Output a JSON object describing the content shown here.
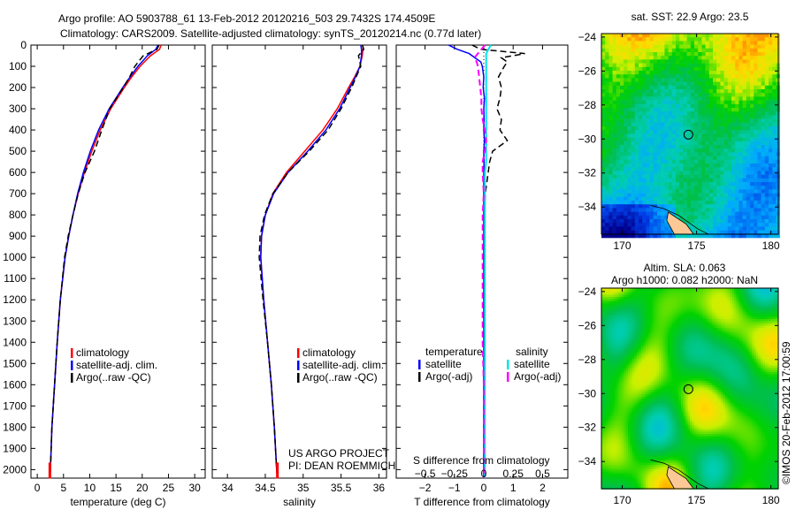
{
  "title_line1": "Argo profile: AO 5903788_61 13-Feb-2012 20120216_503 29.7432S 174.4509E",
  "title_line2": "Climatology: CARS2009. Satellite-adjusted climatology: synTS_20120214.nc (0.77d later)",
  "credit": "US ARGO PROJECT",
  "pi": "PI: DEAN ROEMMICH",
  "footer": "©IMOS 20-Feb-2012 17:00:59",
  "colors": {
    "climatology": "#ff0000",
    "satellite": "#0000ff",
    "argo": "#000000",
    "sal_satellite": "#00e5ee",
    "sal_argo": "#ff00ff"
  },
  "chart_data": [
    {
      "type": "line",
      "id": "temperature",
      "xlabel": "temperature (deg C)",
      "xlim": [
        -1.2,
        32
      ],
      "xticks": [
        0,
        5,
        10,
        15,
        20,
        25,
        30
      ],
      "ylim": [
        0,
        2040
      ],
      "yticks": [
        0,
        100,
        200,
        300,
        400,
        500,
        600,
        700,
        800,
        900,
        1000,
        1100,
        1200,
        1300,
        1400,
        1500,
        1600,
        1700,
        1800,
        1900,
        2000
      ],
      "legend": [
        "climatology",
        "satellite-adj. clim.",
        "Argo(..raw -QC)"
      ],
      "depth": [
        0,
        20,
        50,
        100,
        150,
        200,
        300,
        400,
        500,
        600,
        700,
        800,
        900,
        1000,
        1200,
        1400,
        1600,
        1800,
        2000,
        2040
      ],
      "series": [
        {
          "name": "climatology",
          "values": [
            23.6,
            23.3,
            21.6,
            19.6,
            18.0,
            16.6,
            14.0,
            12.0,
            10.4,
            9.0,
            7.8,
            6.8,
            6.0,
            5.3,
            4.4,
            3.8,
            3.3,
            2.8,
            2.5,
            2.4
          ]
        },
        {
          "name": "satellite-adj. clim.",
          "values": [
            23.0,
            22.6,
            21.0,
            19.2,
            17.7,
            16.3,
            13.7,
            11.7,
            10.1,
            8.8,
            7.7,
            6.8,
            6.0,
            5.3,
            4.4,
            3.8,
            3.3,
            2.8,
            2.5,
            2.4
          ]
        },
        {
          "name": "Argo(..raw -QC)",
          "values": [
            23.2,
            22.8,
            20.2,
            18.6,
            17.6,
            16.4,
            13.8,
            12.3,
            10.9,
            9.1,
            7.8,
            6.8,
            5.9,
            5.2,
            4.4,
            3.8,
            3.3,
            2.8,
            2.5,
            2.4
          ]
        }
      ]
    },
    {
      "type": "line",
      "id": "salinity",
      "xlabel": "salinity",
      "xlim": [
        33.8,
        36.1
      ],
      "xticks": [
        34,
        34.5,
        35,
        35.5,
        36
      ],
      "ylim": [
        0,
        2040
      ],
      "legend": [
        "climatology",
        "satellite-adj. clim.",
        "Argo(..raw -QC)"
      ],
      "depth": [
        0,
        20,
        50,
        100,
        150,
        200,
        300,
        400,
        500,
        600,
        700,
        800,
        900,
        1000,
        1200,
        1400,
        1600,
        1800,
        2000,
        2040
      ],
      "series": [
        {
          "name": "climatology",
          "values": [
            35.79,
            35.79,
            35.78,
            35.75,
            35.68,
            35.6,
            35.45,
            35.26,
            35.02,
            34.78,
            34.6,
            34.5,
            34.45,
            34.44,
            34.48,
            34.53,
            34.58,
            34.62,
            34.65,
            34.66
          ]
        },
        {
          "name": "satellite-adj. clim.",
          "values": [
            35.76,
            35.77,
            35.77,
            35.75,
            35.69,
            35.62,
            35.48,
            35.3,
            35.06,
            34.8,
            34.61,
            34.5,
            34.45,
            34.44,
            34.48,
            34.53,
            34.58,
            34.62,
            34.65,
            34.66
          ]
        },
        {
          "name": "Argo(..raw -QC)",
          "values": [
            35.78,
            35.8,
            35.73,
            35.76,
            35.7,
            35.64,
            35.5,
            35.33,
            35.08,
            34.8,
            34.6,
            34.49,
            34.43,
            34.42,
            34.47,
            34.53,
            34.58,
            34.62,
            34.65,
            34.66
          ]
        }
      ]
    },
    {
      "type": "line",
      "id": "difference",
      "xlabel": "T difference from climatology",
      "xlabel_top": "S difference from climatology",
      "xlim": [
        -2.98,
        2.86
      ],
      "xticks": [
        -2,
        -1,
        0,
        1,
        2
      ],
      "xticks_s": [
        "-0.5",
        "-0.25",
        "0",
        "0.25",
        "0.5"
      ],
      "xticks_s_values": [
        -0.5,
        -0.25,
        0,
        0.25,
        0.5
      ],
      "ylim": [
        0,
        2040
      ],
      "legend_temperature": {
        "title": "temperature",
        "items": [
          "satellite",
          "Argo(-adj)"
        ]
      },
      "legend_salinity": {
        "title": "salinity",
        "items": [
          "satellite",
          "Argo(-adj)"
        ]
      },
      "depth": [
        0,
        20,
        40,
        60,
        80,
        100,
        150,
        200,
        250,
        300,
        350,
        400,
        450,
        500,
        550,
        600,
        700,
        800,
        900,
        1000,
        1200,
        1400,
        1600,
        1800,
        2000,
        2040
      ],
      "series": [
        {
          "name": "T satellite",
          "axis": "T",
          "values": [
            -1.2,
            -0.9,
            -0.5,
            -0.3,
            -0.1,
            -0.05,
            0,
            -0.02,
            0.02,
            0,
            0.01,
            0,
            0.02,
            0,
            0.01,
            0,
            0,
            0,
            0,
            0,
            0,
            0,
            0,
            0,
            0,
            0
          ]
        },
        {
          "name": "T Argo(-adj)",
          "axis": "T",
          "values": [
            -0.4,
            -0.1,
            1.4,
            0.6,
            0.8,
            0.7,
            0.5,
            0.6,
            0.55,
            0.45,
            0.6,
            0.55,
            0.8,
            0.3,
            0.2,
            0.15,
            0.05,
            0.02,
            0.02,
            0,
            0,
            0,
            0,
            0,
            0,
            0
          ]
        },
        {
          "name": "S satellite",
          "axis": "S",
          "values": [
            0.06,
            0.04,
            0.02,
            0.02,
            0.02,
            0.02,
            0.02,
            0.02,
            0.02,
            0.02,
            0.02,
            0.02,
            0.02,
            0.02,
            0.02,
            0.01,
            0.01,
            0.01,
            0.01,
            0.01,
            0.01,
            0.01,
            0.01,
            0.01,
            0.01,
            0.01
          ]
        },
        {
          "name": "S Argo(-adj)",
          "axis": "S",
          "values": [
            0.01,
            -0.02,
            -0.05,
            -0.08,
            -0.06,
            -0.05,
            -0.04,
            -0.03,
            -0.02,
            -0.02,
            -0.01,
            0.01,
            0.02,
            0.01,
            -0.01,
            -0.01,
            0,
            -0.01,
            -0.01,
            -0.01,
            -0.01,
            -0.01,
            0,
            0,
            0,
            0
          ]
        }
      ]
    },
    {
      "type": "heatmap",
      "id": "sst_map",
      "title": "sat. SST: 22.9 Argo: 23.5",
      "xlim": [
        168.6,
        180.5
      ],
      "ylim": [
        -35.6,
        -23.8
      ],
      "xticks": [
        170,
        175,
        180
      ],
      "yticks": [
        -24,
        -26,
        -28,
        -30,
        -32,
        -34
      ],
      "marker": {
        "lon": 174.4509,
        "lat": -29.7432
      }
    },
    {
      "type": "heatmap",
      "id": "sla_map",
      "title": "Altim. SLA: 0.063",
      "subtitle": "Argo h1000: 0.082 h2000: NaN",
      "xlim": [
        168.6,
        180.5
      ],
      "ylim": [
        -35.6,
        -23.8
      ],
      "xticks": [
        170,
        175,
        180
      ],
      "yticks": [
        -24,
        -26,
        -28,
        -30,
        -32,
        -34
      ],
      "marker": {
        "lon": 174.4509,
        "lat": -29.7432
      }
    }
  ]
}
